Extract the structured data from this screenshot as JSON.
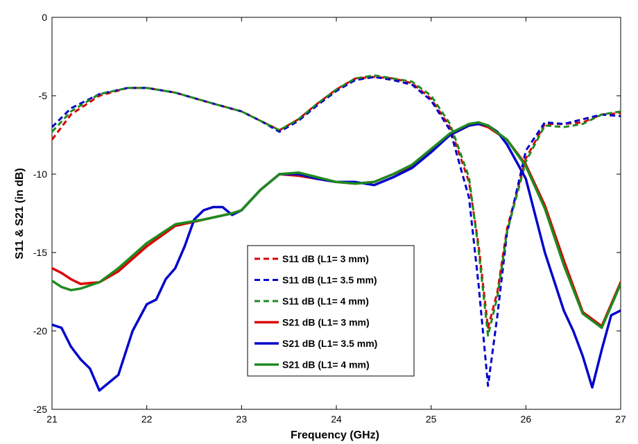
{
  "chart_data": {
    "type": "line",
    "title": "",
    "xlabel": "Frequency (GHz)",
    "ylabel": "S11 & S21 (in dB)",
    "xlim": [
      21,
      27
    ],
    "ylim": [
      -25,
      0
    ],
    "xticks": [
      "21",
      "22",
      "23",
      "24",
      "25",
      "26",
      "27"
    ],
    "yticks": [
      "0",
      "-5",
      "-10",
      "-15",
      "-20",
      "-25"
    ],
    "grid": false,
    "legend_position": "center-bottom",
    "series": [
      {
        "name": "S11 dB (L1= 3 mm)",
        "color": "#dd0000",
        "dash": "dashed",
        "x": [
          21,
          21.2,
          21.5,
          21.8,
          22,
          22.3,
          22.7,
          23,
          23.2,
          23.4,
          23.6,
          23.8,
          24,
          24.2,
          24.4,
          24.6,
          24.8,
          25,
          25.2,
          25.4,
          25.5,
          25.6,
          25.7,
          25.8,
          26,
          26.2,
          26.4,
          26.6,
          26.8,
          27
        ],
        "y": [
          -7.8,
          -6.2,
          -5.0,
          -4.5,
          -4.5,
          -4.8,
          -5.5,
          -6.0,
          -6.6,
          -7.2,
          -6.5,
          -5.5,
          -4.6,
          -3.9,
          -3.8,
          -3.9,
          -4.2,
          -5.2,
          -7.0,
          -10.5,
          -14.5,
          -19.8,
          -17.5,
          -13.5,
          -9.0,
          -6.8,
          -6.8,
          -6.7,
          -6.2,
          -6.1
        ]
      },
      {
        "name": "S11 dB (L1= 3.5 mm)",
        "color": "#0000cc",
        "dash": "dashed",
        "x": [
          21,
          21.2,
          21.5,
          21.8,
          22,
          22.3,
          22.7,
          23,
          23.2,
          23.4,
          23.6,
          23.8,
          24,
          24.2,
          24.4,
          24.6,
          24.8,
          25,
          25.2,
          25.4,
          25.5,
          25.6,
          25.7,
          25.8,
          26,
          26.2,
          26.4,
          26.6,
          26.8,
          27
        ],
        "y": [
          -7.0,
          -5.8,
          -4.9,
          -4.5,
          -4.5,
          -4.8,
          -5.5,
          -6.0,
          -6.6,
          -7.3,
          -6.6,
          -5.6,
          -4.7,
          -4.0,
          -3.8,
          -4.0,
          -4.3,
          -5.3,
          -7.2,
          -11.5,
          -17.0,
          -23.5,
          -19.0,
          -13.8,
          -8.5,
          -6.7,
          -6.8,
          -6.5,
          -6.2,
          -6.3
        ]
      },
      {
        "name": "S11 dB (L1= 4 mm)",
        "color": "#1f8a1f",
        "dash": "dashed",
        "x": [
          21,
          21.2,
          21.5,
          21.8,
          22,
          22.3,
          22.7,
          23,
          23.2,
          23.4,
          23.6,
          23.8,
          24,
          24.2,
          24.4,
          24.6,
          24.8,
          25,
          25.2,
          25.4,
          25.5,
          25.6,
          25.7,
          25.8,
          26,
          26.2,
          26.4,
          26.6,
          26.8,
          27
        ],
        "y": [
          -7.3,
          -6.0,
          -4.9,
          -4.5,
          -4.5,
          -4.8,
          -5.5,
          -6.0,
          -6.6,
          -7.2,
          -6.5,
          -5.5,
          -4.6,
          -3.9,
          -3.7,
          -3.9,
          -4.1,
          -5.0,
          -6.8,
          -10.2,
          -14.8,
          -20.3,
          -17.8,
          -13.7,
          -9.2,
          -6.9,
          -7.0,
          -6.8,
          -6.2,
          -6.0
        ]
      },
      {
        "name": "S21 dB (L1= 3 mm)",
        "color": "#dd0000",
        "dash": "solid",
        "x": [
          21,
          21.1,
          21.2,
          21.3,
          21.5,
          21.7,
          22,
          22.3,
          22.6,
          22.9,
          23,
          23.2,
          23.4,
          23.6,
          23.8,
          24,
          24.2,
          24.4,
          24.6,
          24.8,
          25,
          25.2,
          25.4,
          25.5,
          25.6,
          25.8,
          26,
          26.2,
          26.4,
          26.6,
          26.8,
          27
        ],
        "y": [
          -16.0,
          -16.3,
          -16.7,
          -17.0,
          -16.9,
          -16.2,
          -14.6,
          -13.3,
          -12.9,
          -12.5,
          -12.3,
          -11.0,
          -10.0,
          -10.1,
          -10.3,
          -10.5,
          -10.6,
          -10.5,
          -10.0,
          -9.5,
          -8.5,
          -7.5,
          -6.9,
          -6.8,
          -7.0,
          -7.8,
          -9.4,
          -12.0,
          -15.5,
          -18.8,
          -19.7,
          -16.9
        ]
      },
      {
        "name": "S21 dB (L1= 3.5 mm)",
        "color": "#0000cc",
        "dash": "solid",
        "x": [
          21,
          21.1,
          21.2,
          21.3,
          21.4,
          21.5,
          21.7,
          21.85,
          22,
          22.1,
          22.2,
          22.3,
          22.4,
          22.5,
          22.6,
          22.7,
          22.8,
          22.9,
          23,
          23.2,
          23.4,
          23.6,
          23.8,
          24,
          24.2,
          24.4,
          24.6,
          24.8,
          25,
          25.2,
          25.4,
          25.5,
          25.6,
          25.7,
          25.8,
          25.9,
          26,
          26.2,
          26.4,
          26.5,
          26.6,
          26.7,
          26.8,
          26.9,
          27
        ],
        "y": [
          -19.6,
          -19.8,
          -21.0,
          -21.8,
          -22.4,
          -23.8,
          -22.8,
          -20.0,
          -18.3,
          -18.0,
          -16.7,
          -16.0,
          -14.6,
          -12.9,
          -12.3,
          -12.1,
          -12.1,
          -12.6,
          -12.3,
          -11.0,
          -10.0,
          -10.0,
          -10.3,
          -10.5,
          -10.5,
          -10.7,
          -10.2,
          -9.6,
          -8.6,
          -7.5,
          -6.9,
          -6.8,
          -6.9,
          -7.3,
          -8.1,
          -9.2,
          -10.3,
          -15.0,
          -18.7,
          -20.0,
          -21.6,
          -23.6,
          -21.2,
          -19.0,
          -18.7
        ]
      },
      {
        "name": "S21 dB (L1= 4 mm)",
        "color": "#1f8a1f",
        "dash": "solid",
        "x": [
          21,
          21.1,
          21.2,
          21.3,
          21.5,
          21.7,
          22,
          22.3,
          22.6,
          22.9,
          23,
          23.2,
          23.4,
          23.6,
          23.8,
          24,
          24.2,
          24.4,
          24.6,
          24.8,
          25,
          25.2,
          25.4,
          25.5,
          25.6,
          25.8,
          26,
          26.2,
          26.4,
          26.6,
          26.8,
          27
        ],
        "y": [
          -16.8,
          -17.2,
          -17.4,
          -17.3,
          -16.9,
          -16.0,
          -14.4,
          -13.2,
          -12.9,
          -12.5,
          -12.3,
          -11.0,
          -10.0,
          -9.9,
          -10.2,
          -10.5,
          -10.6,
          -10.5,
          -10.0,
          -9.4,
          -8.4,
          -7.4,
          -6.8,
          -6.7,
          -6.9,
          -7.8,
          -9.5,
          -12.2,
          -15.8,
          -18.9,
          -19.8,
          -17.0
        ]
      }
    ]
  }
}
